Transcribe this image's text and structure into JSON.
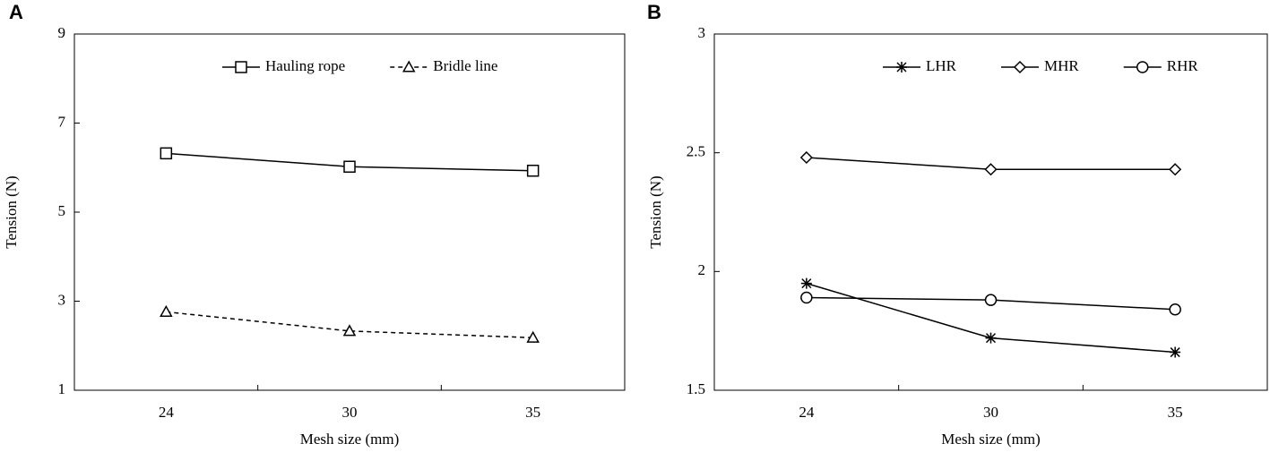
{
  "chart_data": [
    {
      "type": "line",
      "panel": "A",
      "x_label": "Mesh size (mm)",
      "y_label": "Tension (N)",
      "categories": [
        "24",
        "30",
        "35"
      ],
      "ylim": [
        1,
        9
      ],
      "yticks": [
        1,
        3,
        5,
        7,
        9
      ],
      "series": [
        {
          "name": "Hauling rope",
          "color": "#000000",
          "marker": "square",
          "dashed": false,
          "values": [
            6.32,
            6.02,
            5.93
          ]
        },
        {
          "name": "Bridle line",
          "color": "#000000",
          "marker": "triangle",
          "dashed": true,
          "values": [
            2.76,
            2.33,
            2.18
          ]
        }
      ]
    },
    {
      "type": "line",
      "panel": "B",
      "x_label": "Mesh size (mm)",
      "y_label": "Tension (N)",
      "categories": [
        "24",
        "30",
        "35"
      ],
      "ylim": [
        1.5,
        3
      ],
      "yticks": [
        1.5,
        2,
        2.5,
        3
      ],
      "series": [
        {
          "name": "LHR",
          "color": "#000000",
          "marker": "asterisk",
          "dashed": false,
          "values": [
            1.95,
            1.72,
            1.66
          ]
        },
        {
          "name": "MHR",
          "color": "#000000",
          "marker": "diamond",
          "dashed": false,
          "values": [
            2.48,
            2.43,
            2.43
          ]
        },
        {
          "name": "RHR",
          "color": "#000000",
          "marker": "circle",
          "dashed": false,
          "values": [
            1.89,
            1.88,
            1.84
          ]
        }
      ]
    }
  ]
}
